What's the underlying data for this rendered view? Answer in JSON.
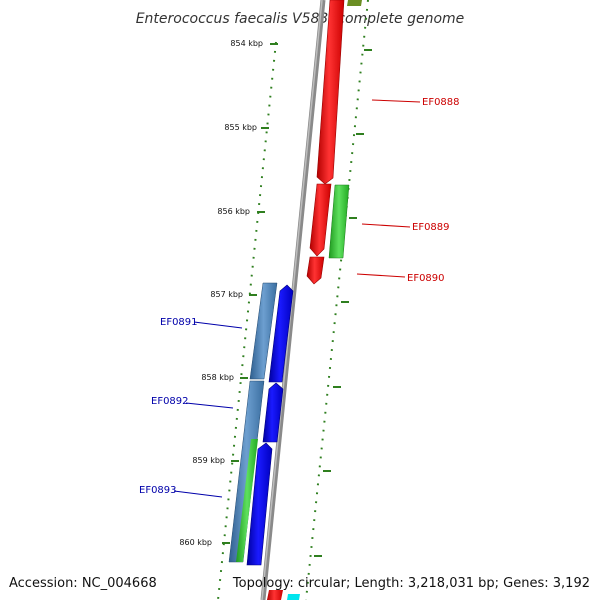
{
  "title": "Enterococcus faecalis V583, complete genome",
  "footer": {
    "accession": "Accession: NC_004668",
    "topology": "Topology: circular; Length: 3,218,031 bp; Genes: 3,192"
  },
  "kbp_labels": [
    "854 kbp",
    "855 kbp",
    "856 kbp",
    "857 kbp",
    "858 kbp",
    "859 kbp",
    "860 kbp"
  ],
  "gene_labels": {
    "right": [
      "EF0888",
      "EF0889",
      "EF0890"
    ],
    "left": [
      "EF0891",
      "EF0892",
      "EF0893"
    ]
  },
  "colors": {
    "backbone": "#8a8a8a",
    "tick": "#2f7f1f",
    "forward_gene": "#ff0000",
    "reverse_gene": "#0000ff",
    "rna_green": "#33cc33",
    "cog_blue": "#4a7fb5",
    "right_label": "#cc0000",
    "left_label": "#0000aa",
    "olive": "#6b8e23",
    "cyan": "#00e5ee"
  }
}
